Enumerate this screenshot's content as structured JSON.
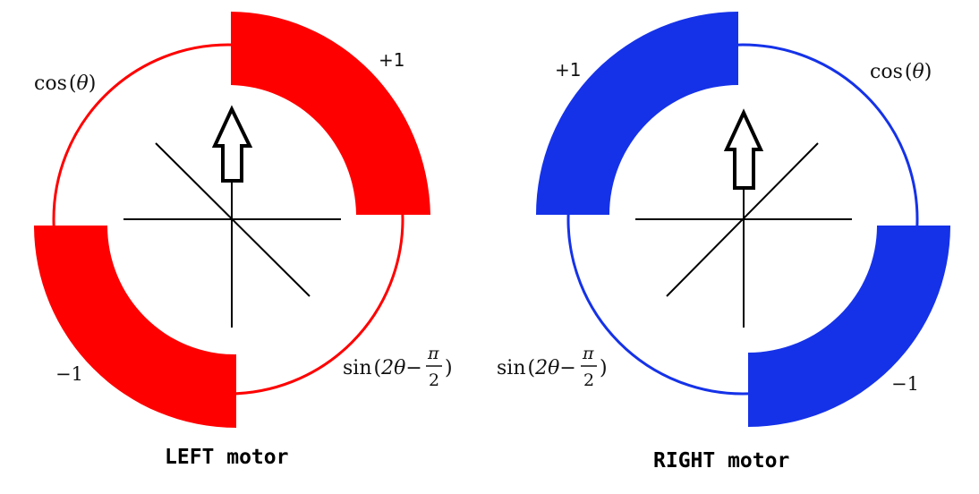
{
  "colors": {
    "left_motor": "#ff0000",
    "right_motor": "#1532e8",
    "axes": "#000000",
    "arrow": "#000000"
  },
  "left": {
    "label_cos_prefix": "cos",
    "label_cos_var": "θ",
    "label_sin_prefix": "sin",
    "label_sin_inner": "2θ−",
    "label_sin_num": "π",
    "label_sin_den": "2",
    "plus": "+1",
    "minus": "−1",
    "caption": "LEFT motor"
  },
  "right": {
    "label_cos_prefix": "cos",
    "label_cos_var": "θ",
    "label_sin_prefix": "sin",
    "label_sin_inner": "2θ−",
    "label_sin_num": "π",
    "label_sin_den": "2",
    "plus": "+1",
    "minus": "−1",
    "caption": "RIGHT motor"
  },
  "arrow_icon": "up-arrow-icon"
}
